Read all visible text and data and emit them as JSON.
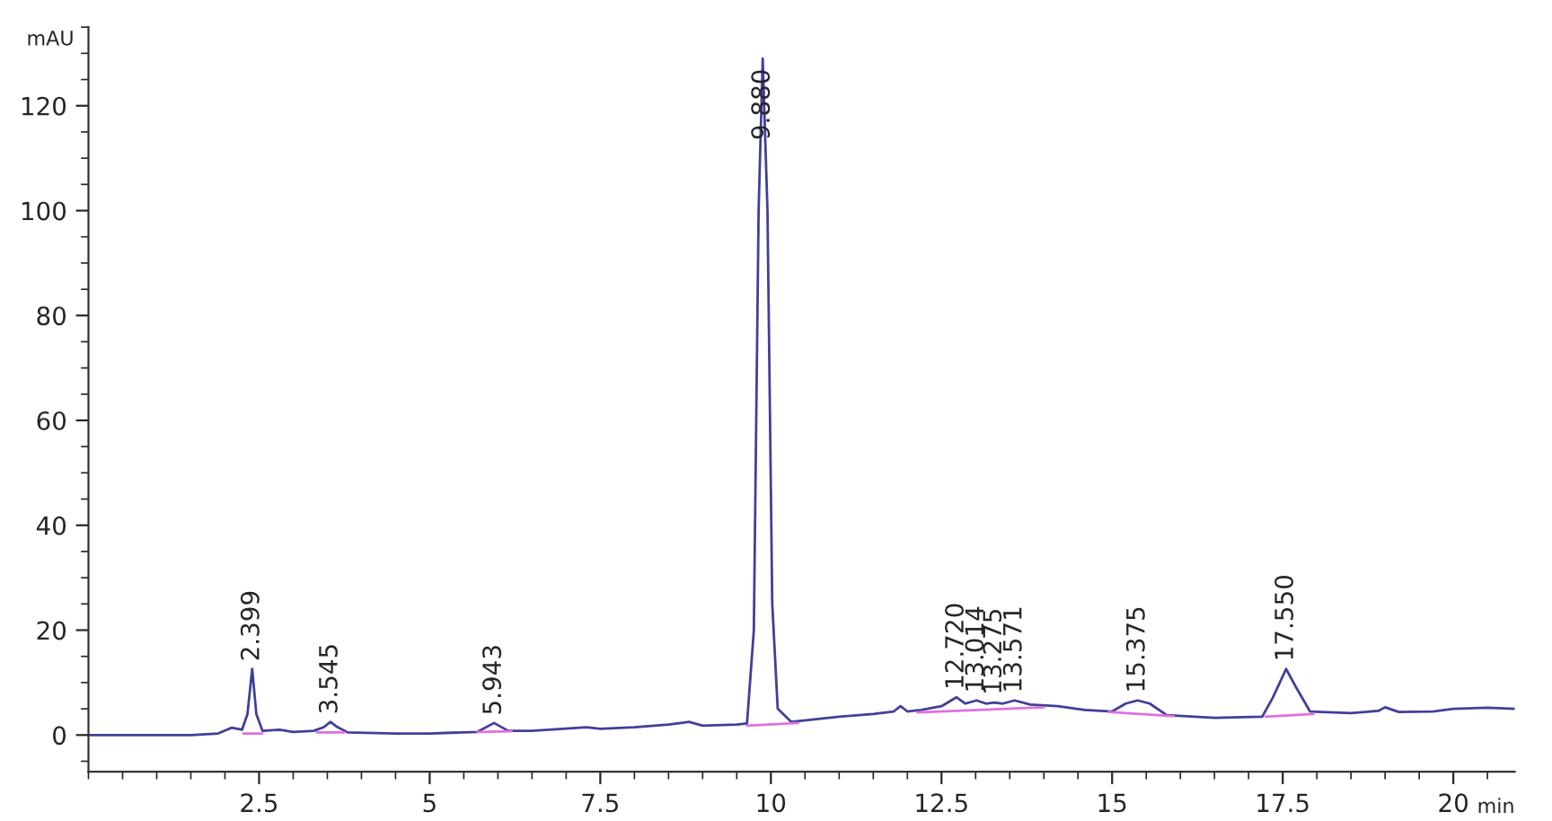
{
  "chart_data": {
    "type": "line",
    "xlabel": "min",
    "ylabel": "mAU",
    "xlim": [
      0,
      20.9
    ],
    "ylim": [
      -7,
      135
    ],
    "xticks": [
      2.5,
      5,
      7.5,
      10,
      12.5,
      15,
      17.5,
      20
    ],
    "yticks": [
      0,
      20,
      40,
      60,
      80,
      100,
      120
    ],
    "grid": false,
    "legend": false,
    "marker": "none",
    "line_style": "solid",
    "series": [
      {
        "color": "#40409a",
        "x": [
          0,
          1.5,
          1.9,
          2.1,
          2.25,
          2.33,
          2.399,
          2.46,
          2.55,
          2.8,
          3.0,
          3.3,
          3.45,
          3.545,
          3.65,
          3.8,
          4.5,
          5.0,
          5.7,
          5.943,
          6.15,
          6.5,
          7.3,
          7.5,
          8.0,
          8.5,
          8.8,
          9.0,
          9.5,
          9.65,
          9.75,
          9.82,
          9.88,
          9.95,
          10.02,
          10.1,
          10.3,
          11.0,
          11.5,
          11.8,
          11.9,
          12.0,
          12.2,
          12.5,
          12.72,
          12.85,
          13.014,
          13.15,
          13.275,
          13.4,
          13.571,
          13.8,
          14.2,
          14.6,
          15.0,
          15.2,
          15.375,
          15.55,
          15.8,
          16.5,
          17.2,
          17.35,
          17.55,
          17.7,
          17.9,
          18.5,
          18.9,
          19.0,
          19.2,
          19.7,
          20.0,
          20.5,
          20.9
        ],
        "values": [
          0,
          0,
          0.3,
          1.4,
          1,
          4,
          12.6,
          4,
          0.8,
          1,
          0.6,
          0.8,
          1.5,
          2.5,
          1.5,
          0.5,
          0.3,
          0.3,
          0.6,
          2.3,
          0.8,
          0.8,
          1.5,
          1.2,
          1.5,
          2,
          2.5,
          1.8,
          2,
          2.2,
          20,
          100,
          129,
          100,
          25,
          5,
          2.5,
          3.5,
          4,
          4.5,
          5.5,
          4.5,
          4.8,
          5.5,
          7.2,
          6,
          6.6,
          6,
          6.2,
          6,
          6.6,
          5.8,
          5.5,
          4.8,
          4.5,
          6,
          6.6,
          6,
          3.8,
          3.3,
          3.5,
          7,
          12.6,
          9,
          4.5,
          4.2,
          4.6,
          5.3,
          4.4,
          4.5,
          5,
          5.2,
          5
        ]
      },
      {
        "color": "#e070e0",
        "x": [
          2.27,
          2.55,
          2.6,
          3.35,
          3.75,
          3.8,
          5.7,
          6.2,
          6.25,
          9.65,
          10.4,
          10.45,
          12.15,
          14.0,
          14.05,
          14.95,
          15.9,
          15.95,
          17.25,
          17.95
        ],
        "values": [
          0.3,
          0.3,
          null,
          0.5,
          0.5,
          null,
          0.6,
          0.7,
          null,
          1.8,
          2.3,
          null,
          4.3,
          5.3,
          null,
          4.4,
          3.6,
          null,
          3.5,
          4.0
        ]
      }
    ],
    "annotations": [
      {
        "text": "2.399",
        "x": 2.399,
        "y": 12.6
      },
      {
        "text": "3.545",
        "x": 3.545,
        "y": 2.5
      },
      {
        "text": "5.943",
        "x": 5.943,
        "y": 2.3
      },
      {
        "text": "9.880",
        "x": 9.88,
        "y": 112
      },
      {
        "text": "12.720",
        "x": 12.72,
        "y": 7.2
      },
      {
        "text": "13.014",
        "x": 13.014,
        "y": 6.6
      },
      {
        "text": "13.275",
        "x": 13.275,
        "y": 6.2
      },
      {
        "text": "13.571",
        "x": 13.571,
        "y": 6.6
      },
      {
        "text": "15.375",
        "x": 15.375,
        "y": 6.6
      },
      {
        "text": "17.550",
        "x": 17.55,
        "y": 12.6
      }
    ]
  }
}
